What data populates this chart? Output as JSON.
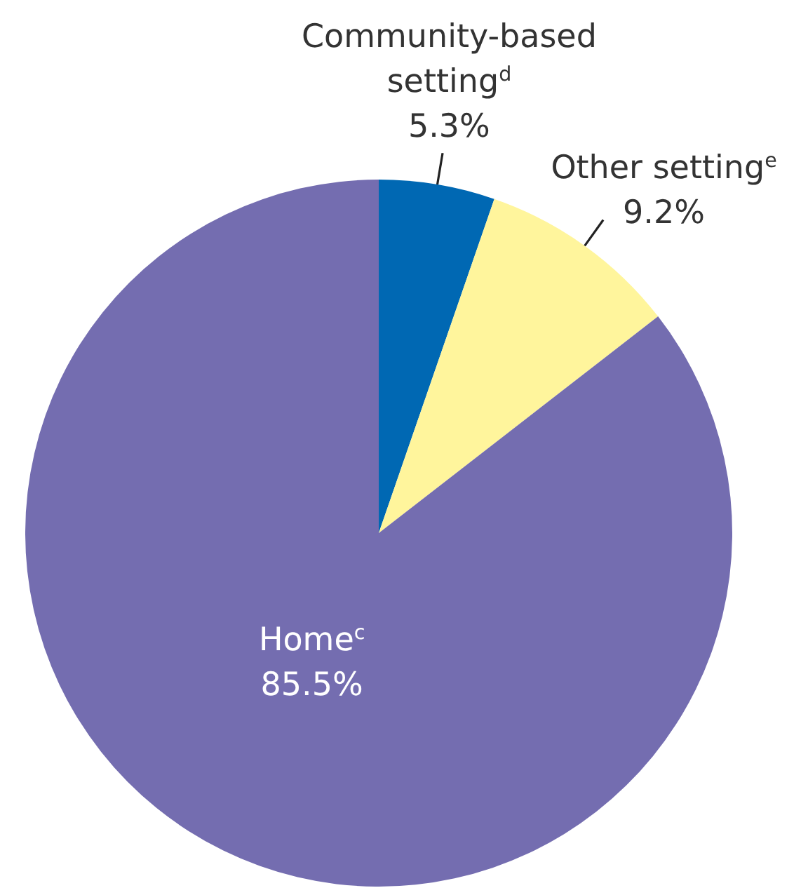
{
  "chart_data": {
    "type": "pie",
    "categories": [
      "Community-based setting$^{d}$",
      "Other setting$^{e}$",
      "Home$^{c}$"
    ],
    "values": [
      5.3,
      9.2,
      85.5
    ],
    "colors": [
      "#0068b3",
      "#fff59c",
      "#746db0"
    ],
    "value_labels": [
      "5.3%",
      "9.2%",
      "85.5%"
    ]
  }
}
